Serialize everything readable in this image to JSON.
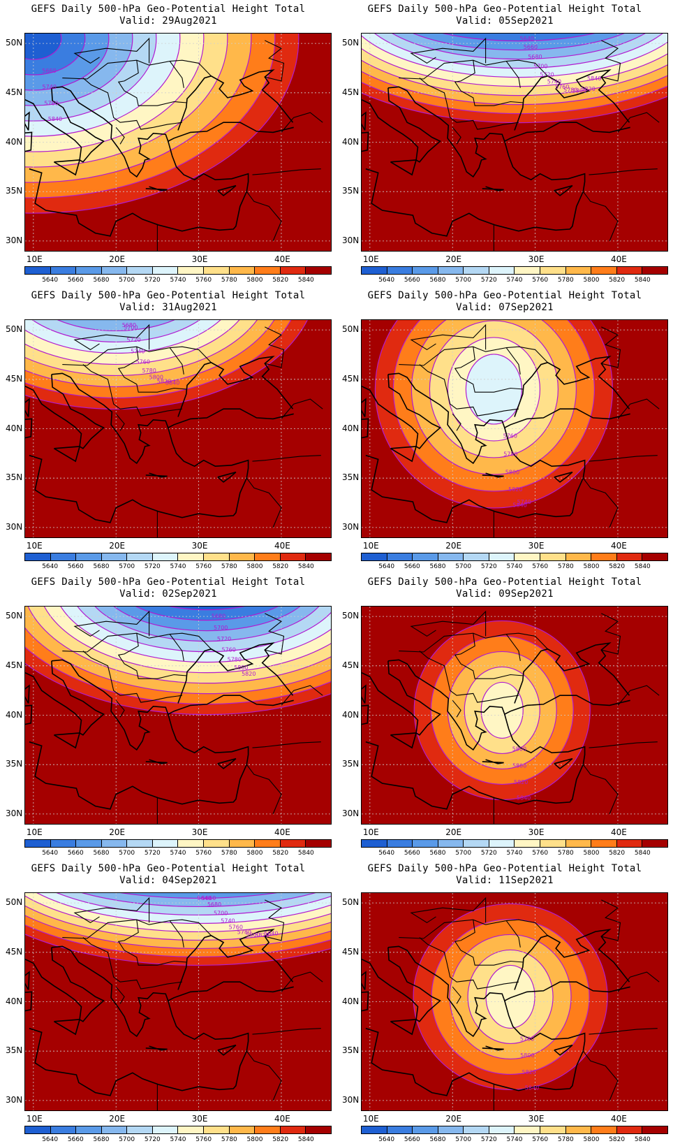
{
  "panels": [
    {
      "title": "GEFS Daily 500-hPa Geo-Potential Height Total",
      "valid": "Valid: 29Aug2021",
      "regime": "trough-nw",
      "contour_labels": [
        "5660",
        "5740",
        "5760",
        "5840"
      ]
    },
    {
      "title": "GEFS Daily 500-hPa Geo-Potential Height Total",
      "valid": "Valid: 05Sep2021",
      "regime": "trough-north",
      "contour_labels": [
        "5640",
        "5660",
        "5680",
        "5700",
        "5720",
        "5740",
        "5760",
        "5780",
        "5800",
        "5820",
        "5840"
      ]
    },
    {
      "title": "GEFS Daily 500-hPa Geo-Potential Height Total",
      "valid": "Valid: 31Aug2021",
      "regime": "trough-nw2",
      "contour_labels": [
        "5680",
        "5700",
        "5720",
        "5740",
        "5760",
        "5780",
        "5800",
        "5820",
        "5840"
      ]
    },
    {
      "title": "GEFS Daily 500-hPa Geo-Potential Height Total",
      "valid": "Valid: 07Sep2021",
      "regime": "cutoff-low",
      "contour_labels": [
        "5760",
        "5780",
        "5800",
        "5820",
        "5840",
        "5740"
      ]
    },
    {
      "title": "GEFS Daily 500-hPa Geo-Potential Height Total",
      "valid": "Valid: 02Sep2021",
      "regime": "trough-ne",
      "contour_labels": [
        "5680",
        "5700",
        "5720",
        "5760",
        "5780",
        "5800",
        "5820"
      ]
    },
    {
      "title": "GEFS Daily 500-hPa Geo-Potential Height Total",
      "valid": "Valid: 09Sep2021",
      "regime": "ring",
      "contour_labels": [
        "5800",
        "5800",
        "5820",
        "5840"
      ]
    },
    {
      "title": "GEFS Daily 500-hPa Geo-Potential Height Total",
      "valid": "Valid: 04Sep2021",
      "regime": "trough-north2",
      "contour_labels": [
        "5640",
        "5660",
        "5680",
        "5700",
        "5740",
        "5760",
        "5780",
        "5800",
        "5820",
        "5840"
      ]
    },
    {
      "title": "GEFS Daily 500-hPa Geo-Potential Height Total",
      "valid": "Valid: 11Sep2021",
      "regime": "ring2",
      "contour_labels": [
        "5780",
        "5800",
        "5820",
        "5840"
      ]
    }
  ],
  "y_axis": [
    "50N",
    "45N",
    "40N",
    "35N",
    "30N"
  ],
  "x_axis": [
    "10E",
    "20E",
    "30E",
    "40E"
  ],
  "colorbar": {
    "labels": [
      "5640",
      "5660",
      "5680",
      "5700",
      "5720",
      "5740",
      "5760",
      "5780",
      "5800",
      "5820",
      "5840"
    ],
    "colors": [
      "#1e5fd2",
      "#3a7de0",
      "#5a9ae8",
      "#86b8ee",
      "#b4d8f4",
      "#ddf4fb",
      "#fff6c4",
      "#ffe08a",
      "#ffb84a",
      "#ff7d1a",
      "#e02a10",
      "#a50000"
    ]
  }
}
